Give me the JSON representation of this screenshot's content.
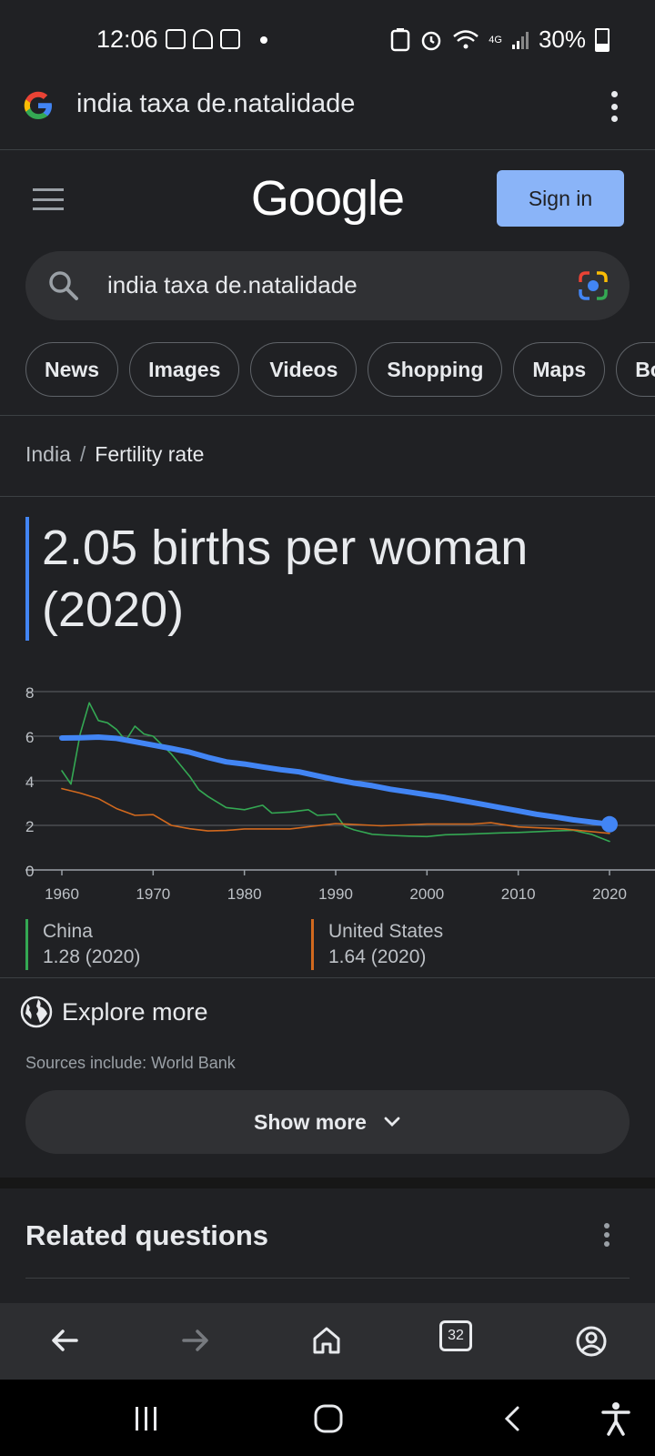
{
  "status_bar": {
    "time": "12:06",
    "network": "4G",
    "battery": "30%"
  },
  "url_bar": {
    "query": "india taxa de.natalidade"
  },
  "header": {
    "logo": "Google",
    "sign_in_label": "Sign in"
  },
  "search": {
    "value": "india taxa de.natalidade"
  },
  "chips": [
    "News",
    "Images",
    "Videos",
    "Shopping",
    "Maps",
    "Bo"
  ],
  "breadcrumb": {
    "root": "India",
    "separator": "/",
    "current": "Fertility rate"
  },
  "answer": {
    "value_line1": "2.05 births per woman",
    "value_line2": "(2020)"
  },
  "chart_data": {
    "type": "line",
    "x_ticks": [
      "1960",
      "1970",
      "1980",
      "1990",
      "2000",
      "2010",
      "2020"
    ],
    "y_ticks": [
      "0",
      "2",
      "4",
      "6",
      "8"
    ],
    "ylim": [
      0,
      8
    ],
    "xlim": [
      1960,
      2020
    ],
    "grid": true,
    "series": [
      {
        "name": "India",
        "color": "#4285f4",
        "x": [
          1960,
          1962,
          1964,
          1966,
          1968,
          1970,
          1972,
          1974,
          1976,
          1978,
          1980,
          1982,
          1984,
          1986,
          1988,
          1990,
          1992,
          1994,
          1996,
          1998,
          2000,
          2002,
          2004,
          2006,
          2008,
          2010,
          2012,
          2014,
          2016,
          2018,
          2020
        ],
        "values": [
          5.92,
          5.93,
          5.96,
          5.9,
          5.75,
          5.6,
          5.45,
          5.28,
          5.05,
          4.85,
          4.75,
          4.62,
          4.5,
          4.4,
          4.22,
          4.05,
          3.9,
          3.78,
          3.62,
          3.5,
          3.37,
          3.25,
          3.1,
          2.95,
          2.8,
          2.65,
          2.5,
          2.38,
          2.25,
          2.15,
          2.05
        ]
      },
      {
        "name": "China",
        "color": "#34a853",
        "x": [
          1960,
          1961,
          1962,
          1963,
          1964,
          1965,
          1966,
          1967,
          1968,
          1969,
          1970,
          1972,
          1974,
          1975,
          1976,
          1978,
          1980,
          1982,
          1983,
          1985,
          1987,
          1988,
          1990,
          1991,
          1992,
          1994,
          1996,
          1998,
          2000,
          2002,
          2004,
          2006,
          2008,
          2010,
          2012,
          2014,
          2016,
          2018,
          2020
        ],
        "values": [
          4.45,
          3.85,
          6.1,
          7.5,
          6.7,
          6.6,
          6.3,
          5.8,
          6.45,
          6.1,
          6.0,
          5.2,
          4.2,
          3.6,
          3.3,
          2.8,
          2.7,
          2.9,
          2.55,
          2.6,
          2.7,
          2.45,
          2.5,
          1.95,
          1.8,
          1.6,
          1.55,
          1.52,
          1.5,
          1.58,
          1.6,
          1.63,
          1.66,
          1.68,
          1.72,
          1.75,
          1.78,
          1.6,
          1.28
        ]
      },
      {
        "name": "United States",
        "color": "#d2691e",
        "x": [
          1960,
          1962,
          1964,
          1966,
          1968,
          1970,
          1972,
          1974,
          1976,
          1978,
          1980,
          1985,
          1990,
          1995,
          2000,
          2005,
          2007,
          2010,
          2015,
          2020
        ],
        "values": [
          3.65,
          3.45,
          3.2,
          2.75,
          2.45,
          2.48,
          2.0,
          1.85,
          1.75,
          1.77,
          1.84,
          1.84,
          2.08,
          1.98,
          2.06,
          2.06,
          2.12,
          1.93,
          1.84,
          1.64
        ]
      }
    ]
  },
  "legend": [
    {
      "name": "China",
      "value": "1.28 (2020)",
      "color": "#34a853"
    },
    {
      "name": "United States",
      "value": "1.64 (2020)",
      "color": "#d2691e"
    }
  ],
  "explore": {
    "label": "Explore more",
    "sources": "Sources include: World Bank"
  },
  "show_more": {
    "label": "Show more"
  },
  "related": {
    "title": "Related questions"
  },
  "toolbar": {
    "tab_count": "32"
  }
}
